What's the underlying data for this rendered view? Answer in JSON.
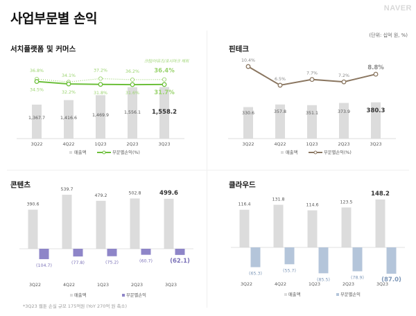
{
  "header": {
    "title": "사업부문별 손익",
    "brand": "NAVER",
    "unit": "(단위: 십억 원, %)"
  },
  "footnote": "*3Q23 웹툰 손실 규모  175억원 (YoY 270억 원 축소)",
  "colors": {
    "bar_gray": "#dcdcdc",
    "search_green": "#6cbf3a",
    "search_green_light": "#9ad36e",
    "fintech_brown": "#8a7660",
    "content_purple": "#8e85c8",
    "cloud_blue": "#b4c5da"
  },
  "chart_data": [
    {
      "id": "search",
      "title": "서치플랫폼 및 커머스",
      "type": "bar+line",
      "categories": [
        "3Q22",
        "4Q22",
        "1Q23",
        "2Q23",
        "3Q23"
      ],
      "series": [
        {
          "name": "매출액",
          "type": "bar",
          "values": [
            1367.7,
            1416.6,
            1469.9,
            1556.1,
            1558.2
          ],
          "labels": [
            "1,367.7",
            "1,416.6",
            "1,469.9",
            "1,556.1",
            "1,558.2"
          ]
        },
        {
          "name": "부문별손익(%)",
          "type": "line",
          "values": [
            34.5,
            32.2,
            31.8,
            31.6,
            31.7
          ],
          "labels": [
            "34.5%",
            "32.2%",
            "31.8%",
            "31.6%",
            "31.7%"
          ]
        },
        {
          "name": "크림/어뮤즈/포시마크 제외",
          "type": "line-dotted",
          "values": [
            36.8,
            34.1,
            37.2,
            36.2,
            36.4
          ],
          "labels": [
            "36.8%",
            "34.1%",
            "37.2%",
            "36.2%",
            "36.4%"
          ]
        }
      ],
      "legend": [
        "매출액",
        "부문별손익(%)"
      ],
      "annotation": "크림/어뮤즈/포시마크 제외"
    },
    {
      "id": "fintech",
      "title": "핀테크",
      "type": "bar+line",
      "categories": [
        "3Q22",
        "4Q22",
        "1Q23",
        "2Q23",
        "3Q23"
      ],
      "series": [
        {
          "name": "매출액",
          "type": "bar",
          "values": [
            330.6,
            357.8,
            351.1,
            373.9,
            380.3
          ],
          "labels": [
            "330.6",
            "357.8",
            "351.1",
            "373.9",
            "380.3"
          ]
        },
        {
          "name": "부문별손익(%)",
          "type": "line",
          "values": [
            10.4,
            6.5,
            7.7,
            7.2,
            8.8
          ],
          "labels": [
            "10.4%",
            "6.5%",
            "7.7%",
            "7.2%",
            "8.8%"
          ]
        }
      ],
      "legend": [
        "매출액",
        "부문별손익(%)"
      ]
    },
    {
      "id": "content",
      "title": "콘텐츠",
      "type": "bar",
      "categories": [
        "3Q22",
        "4Q22",
        "1Q23",
        "2Q23",
        "3Q23"
      ],
      "series": [
        {
          "name": "매출액",
          "values": [
            390.6,
            539.7,
            479.2,
            502.8,
            499.6
          ],
          "labels": [
            "390.6",
            "539.7",
            "479.2",
            "502.8",
            "499.6"
          ]
        },
        {
          "name": "부문별손익",
          "values": [
            -104.7,
            -77.8,
            -75.2,
            -60.7,
            -62.1
          ],
          "labels": [
            "(104.7)",
            "(77.8)",
            "(75.2)",
            "(60.7)",
            "(62.1)"
          ]
        }
      ],
      "legend": [
        "매출액",
        "부문별손익"
      ]
    },
    {
      "id": "cloud",
      "title": "클라우드",
      "type": "bar",
      "categories": [
        "3Q22",
        "4Q22",
        "1Q23",
        "2Q23",
        "3Q23"
      ],
      "series": [
        {
          "name": "매출액",
          "values": [
            116.4,
            131.8,
            114.6,
            123.5,
            148.2
          ],
          "labels": [
            "116.4",
            "131.8",
            "114.6",
            "123.5",
            "148.2"
          ]
        },
        {
          "name": "부문별손익",
          "values": [
            -65.3,
            -55.7,
            -85.5,
            -78.9,
            -87.0
          ],
          "labels": [
            "(65.3)",
            "(55.7)",
            "(85.5)",
            "(78.9)",
            "(87.0)"
          ]
        }
      ],
      "legend": [
        "매출액",
        "부문별손익"
      ]
    }
  ]
}
